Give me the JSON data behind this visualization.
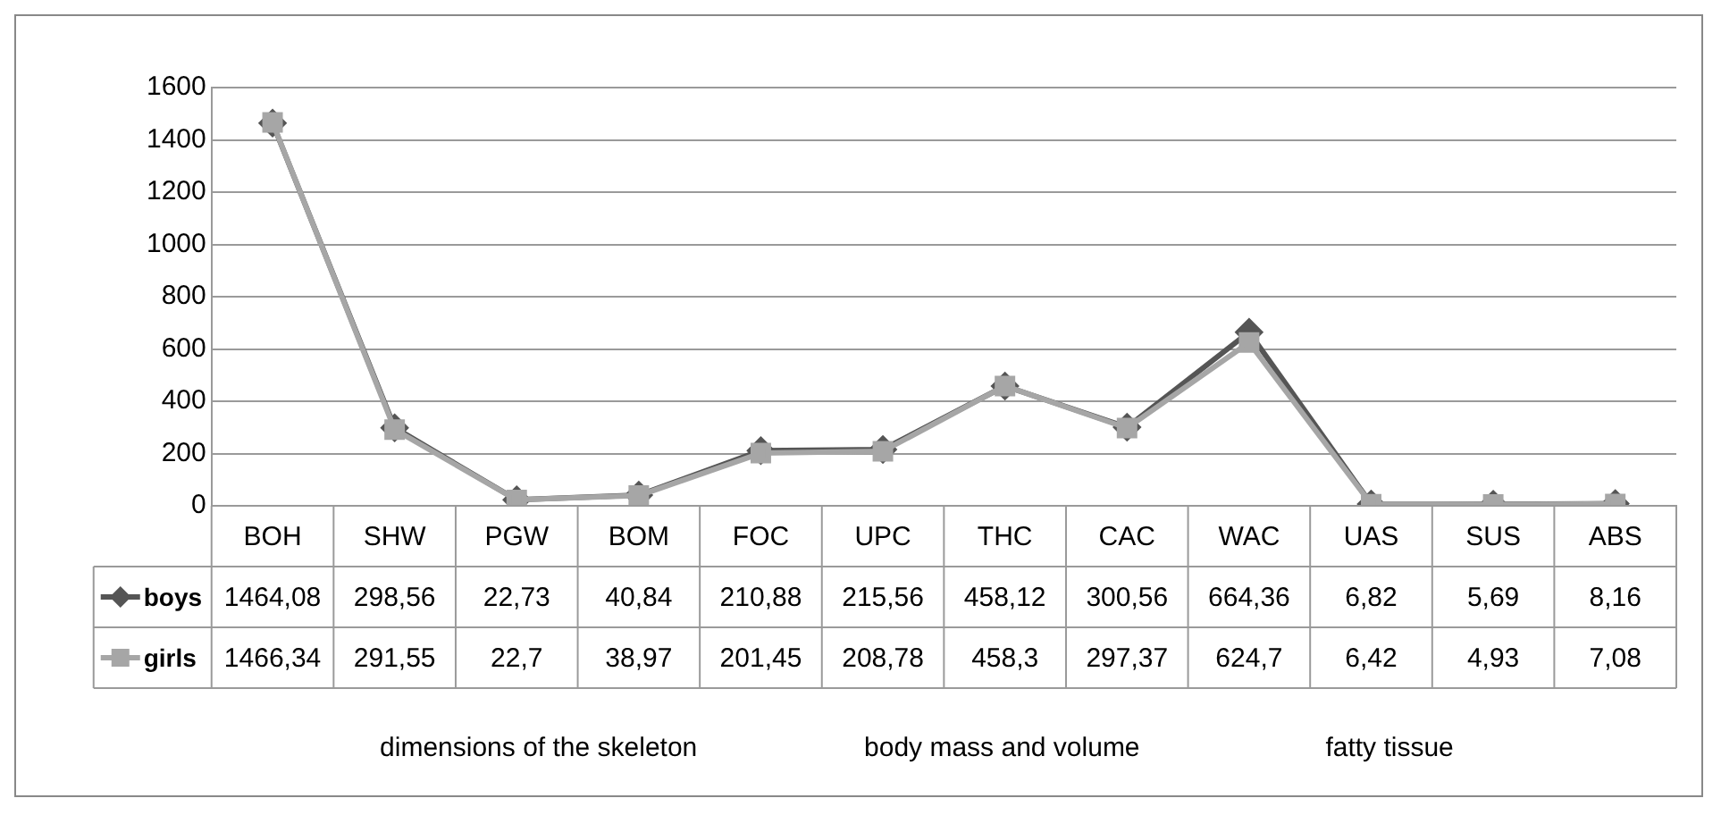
{
  "chart_data": {
    "type": "line",
    "categories": [
      "BOH",
      "SHW",
      "PGW",
      "BOM",
      "FOC",
      "UPC",
      "THC",
      "CAC",
      "WAC",
      "UAS",
      "SUS",
      "ABS"
    ],
    "series": [
      {
        "name": "boys",
        "color": "#555555",
        "marker": "diamond",
        "values": [
          1464.08,
          298.56,
          22.73,
          40.84,
          210.88,
          215.56,
          458.12,
          300.56,
          664.36,
          6.82,
          5.69,
          8.16
        ],
        "value_labels": [
          "1464,08",
          "298,56",
          "22,73",
          "40,84",
          "210,88",
          "215,56",
          "458,12",
          "300,56",
          "664,36",
          "6,82",
          "5,69",
          "8,16"
        ]
      },
      {
        "name": "girls",
        "color": "#a6a6a6",
        "marker": "square",
        "values": [
          1466.34,
          291.55,
          22.7,
          38.97,
          201.45,
          208.78,
          458.3,
          297.37,
          624.7,
          6.42,
          4.93,
          7.08
        ],
        "value_labels": [
          "1466,34",
          "291,55",
          "22,7",
          "38,97",
          "201,45",
          "208,78",
          "458,3",
          "297,37",
          "624,7",
          "6,42",
          "4,93",
          "7,08"
        ]
      }
    ],
    "ylim": [
      0,
      1600
    ],
    "yticks": [
      0,
      200,
      400,
      600,
      800,
      1000,
      1200,
      1400,
      1600
    ],
    "grid": "y",
    "legend": "bottom",
    "line_style": "solid",
    "annotations": [
      "dimensions of the skeleton",
      "body mass and volume",
      "fatty tissue"
    ]
  }
}
